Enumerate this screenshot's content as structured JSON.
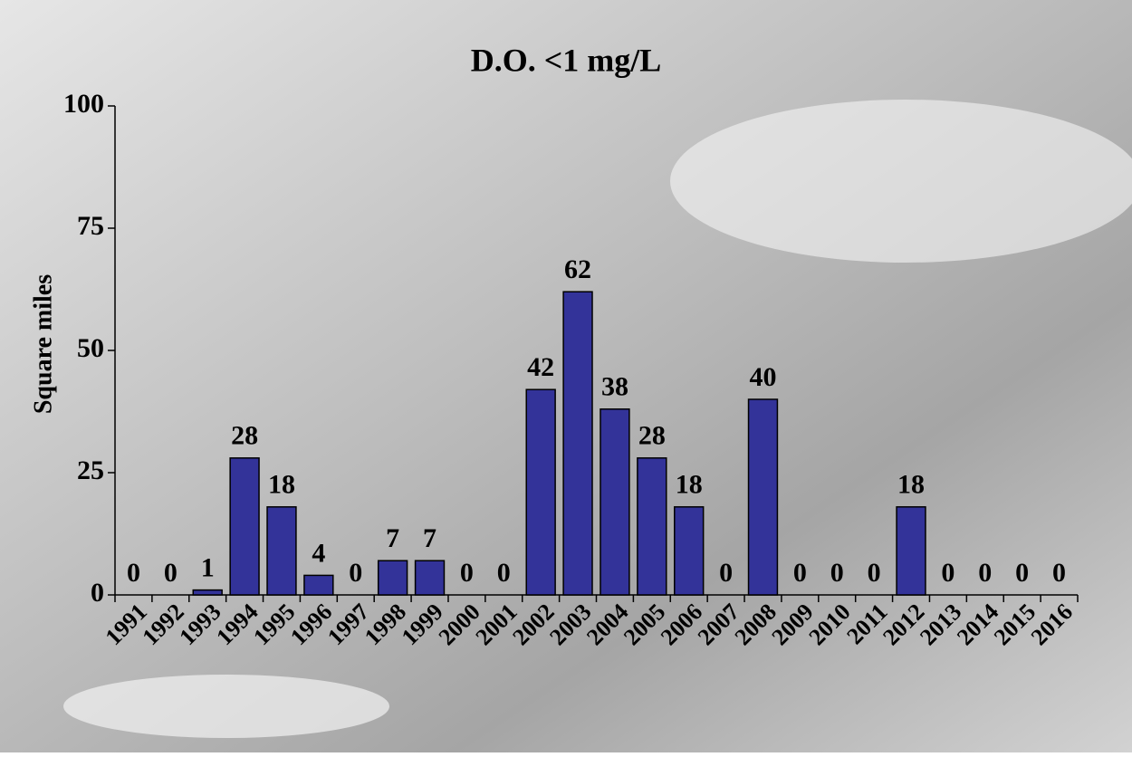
{
  "chart_data": {
    "type": "bar",
    "title": "D.O. <1 mg/L",
    "y_label": "Square miles",
    "categories": [
      "1991",
      "1992",
      "1993",
      "1994",
      "1995",
      "1996",
      "1997",
      "1998",
      "1999",
      "2000",
      "2001",
      "2002",
      "2003",
      "2004",
      "2005",
      "2006",
      "2007",
      "2008",
      "2009",
      "2010",
      "2011",
      "2012",
      "2013",
      "2014",
      "2015",
      "2016"
    ],
    "values": [
      0,
      0,
      1,
      28,
      18,
      4,
      0,
      7,
      7,
      0,
      0,
      42,
      62,
      38,
      28,
      18,
      0,
      40,
      0,
      0,
      0,
      18,
      0,
      0,
      0,
      0
    ],
    "color": "#333399",
    "ylim": [
      0,
      100
    ],
    "yticks": [
      0,
      25,
      50,
      75,
      100
    ],
    "grid": false
  }
}
